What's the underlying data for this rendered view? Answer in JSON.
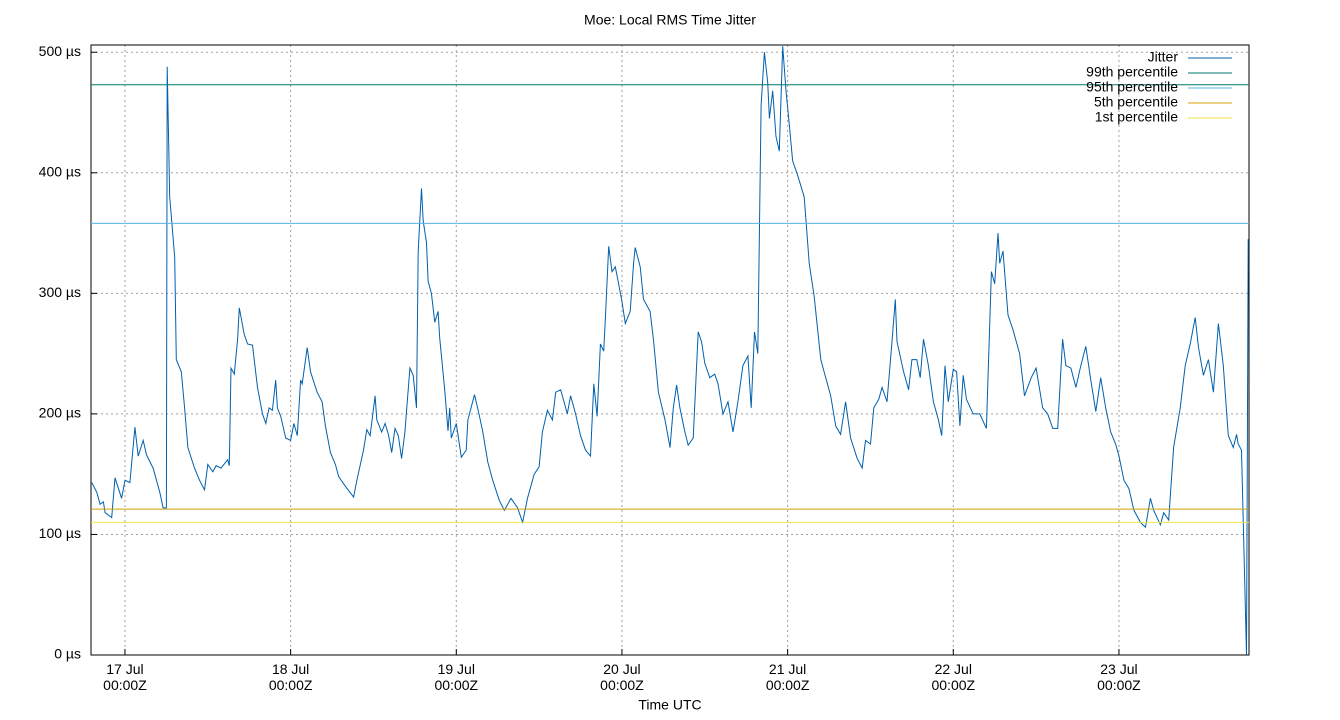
{
  "chart_data": {
    "type": "line",
    "title": "Moe: Local RMS Time Jitter",
    "x_label": "Time UTC",
    "xlim": [
      16.795,
      23.785
    ],
    "ylim": [
      0,
      506
    ],
    "grid": true,
    "legend": "top-right",
    "xticks": [
      {
        "value": 17,
        "label": "17 Jul\n00:00Z"
      },
      {
        "value": 18,
        "label": "18 Jul\n00:00Z"
      },
      {
        "value": 19,
        "label": "19 Jul\n00:00Z"
      },
      {
        "value": 20,
        "label": "20 Jul\n00:00Z"
      },
      {
        "value": 21,
        "label": "21 Jul\n00:00Z"
      },
      {
        "value": 22,
        "label": "22 Jul\n00:00Z"
      },
      {
        "value": 23,
        "label": "23 Jul\n00:00Z"
      }
    ],
    "yticks": [
      {
        "value": 0,
        "label": "0 µs"
      },
      {
        "value": 100,
        "label": "100 µs"
      },
      {
        "value": 200,
        "label": "200 µs"
      },
      {
        "value": 300,
        "label": "300 µs"
      },
      {
        "value": 400,
        "label": "400 µs"
      },
      {
        "value": 500,
        "label": "500 µs"
      }
    ],
    "series": [
      {
        "name": "Jitter",
        "color": "#0060ad",
        "x": [
          16.8,
          16.83,
          16.85,
          16.87,
          16.88,
          16.92,
          16.94,
          16.98,
          17.0,
          17.03,
          17.06,
          17.08,
          17.11,
          17.13,
          17.17,
          17.21,
          17.23,
          17.25,
          17.255,
          17.27,
          17.3,
          17.31,
          17.34,
          17.36,
          17.38,
          17.42,
          17.45,
          17.48,
          17.5,
          17.53,
          17.55,
          17.58,
          17.62,
          17.63,
          17.64,
          17.66,
          17.68,
          17.69,
          17.72,
          17.74,
          17.77,
          17.78,
          17.8,
          17.83,
          17.85,
          17.87,
          17.89,
          17.91,
          17.92,
          17.94,
          17.97,
          18.0,
          18.02,
          18.04,
          18.06,
          18.07,
          18.1,
          18.12,
          18.16,
          18.19,
          18.21,
          18.24,
          18.27,
          18.29,
          18.33,
          18.38,
          18.4,
          18.44,
          18.46,
          18.48,
          18.51,
          18.52,
          18.55,
          18.57,
          18.59,
          18.61,
          18.63,
          18.65,
          18.67,
          18.69,
          18.72,
          18.74,
          18.76,
          18.77,
          18.79,
          18.8,
          18.82,
          18.83,
          18.85,
          18.87,
          18.89,
          18.9,
          18.93,
          18.95,
          18.96,
          18.97,
          19.0,
          19.03,
          19.06,
          19.07,
          19.11,
          19.14,
          19.16,
          19.19,
          19.22,
          19.26,
          19.29,
          19.33,
          19.37,
          19.4,
          19.43,
          19.47,
          19.5,
          19.52,
          19.55,
          19.58,
          19.6,
          19.63,
          19.65,
          19.67,
          19.69,
          19.72,
          19.75,
          19.78,
          19.81,
          19.83,
          19.85,
          19.87,
          19.89,
          19.9,
          19.92,
          19.94,
          19.96,
          19.98,
          20.0,
          20.02,
          20.05,
          20.07,
          20.08,
          20.11,
          20.13,
          20.17,
          20.19,
          20.22,
          20.26,
          20.29,
          20.31,
          20.33,
          20.35,
          20.38,
          20.4,
          20.43,
          20.46,
          20.48,
          20.5,
          20.53,
          20.56,
          20.58,
          20.61,
          20.64,
          20.67,
          20.7,
          20.73,
          20.76,
          20.78,
          20.8,
          20.82,
          20.84,
          20.86,
          20.88,
          20.89,
          20.91,
          20.93,
          20.95,
          20.97,
          20.99,
          21.01,
          21.03,
          21.06,
          21.1,
          21.13,
          21.16,
          21.2,
          21.22,
          21.26,
          21.29,
          21.32,
          21.35,
          21.38,
          21.42,
          21.45,
          21.47,
          21.5,
          21.52,
          21.55,
          21.57,
          21.6,
          21.63,
          21.65,
          21.66,
          21.7,
          21.73,
          21.75,
          21.78,
          21.8,
          21.82,
          21.85,
          21.88,
          21.91,
          21.93,
          21.95,
          21.97,
          22.0,
          22.02,
          22.04,
          22.06,
          22.08,
          22.12,
          22.16,
          22.2,
          22.23,
          22.25,
          22.27,
          22.28,
          22.3,
          22.33,
          22.36,
          22.4,
          22.43,
          22.47,
          22.5,
          22.54,
          22.57,
          22.6,
          22.63,
          22.66,
          22.68,
          22.71,
          22.74,
          22.77,
          22.8,
          22.83,
          22.86,
          22.89,
          22.92,
          22.95,
          22.98,
          23.0,
          23.03,
          23.06,
          23.09,
          23.13,
          23.16,
          23.19,
          23.21,
          23.25,
          23.27,
          23.3,
          23.33,
          23.37,
          23.4,
          23.43,
          23.46,
          23.48,
          23.51,
          23.54,
          23.57,
          23.6,
          23.63,
          23.66,
          23.69,
          23.71,
          23.72,
          23.74,
          23.77,
          23.78
        ],
        "values": [
          143,
          135,
          125,
          127,
          118,
          114,
          147,
          130,
          145,
          143,
          189,
          165,
          178,
          166,
          155,
          135,
          122,
          122,
          488,
          380,
          330,
          245,
          235,
          205,
          172,
          155,
          145,
          137,
          158,
          152,
          157,
          155,
          162,
          157,
          238,
          233,
          262,
          288,
          266,
          258,
          257,
          245,
          222,
          200,
          192,
          205,
          203,
          228,
          205,
          198,
          180,
          178,
          192,
          182,
          228,
          225,
          255,
          235,
          218,
          210,
          190,
          168,
          158,
          148,
          140,
          131,
          145,
          170,
          187,
          182,
          215,
          195,
          185,
          192,
          183,
          168,
          188,
          182,
          163,
          185,
          238,
          232,
          205,
          335,
          387,
          360,
          342,
          310,
          300,
          276,
          285,
          263,
          220,
          186,
          205,
          180,
          192,
          164,
          170,
          195,
          216,
          198,
          185,
          160,
          145,
          128,
          120,
          130,
          122,
          110,
          130,
          150,
          156,
          185,
          203,
          195,
          218,
          220,
          210,
          200,
          215,
          200,
          182,
          170,
          165,
          225,
          198,
          258,
          252,
          280,
          339,
          318,
          322,
          308,
          293,
          275,
          285,
          325,
          338,
          322,
          295,
          285,
          262,
          218,
          195,
          172,
          205,
          224,
          205,
          185,
          174,
          180,
          268,
          260,
          242,
          230,
          233,
          225,
          200,
          210,
          185,
          210,
          240,
          248,
          205,
          268,
          250,
          456,
          500,
          475,
          445,
          468,
          430,
          418,
          505,
          468,
          440,
          410,
          398,
          380,
          325,
          298,
          245,
          235,
          215,
          190,
          183,
          210,
          180,
          163,
          155,
          178,
          175,
          205,
          212,
          222,
          210,
          260,
          295,
          260,
          235,
          220,
          245,
          245,
          230,
          262,
          240,
          210,
          195,
          182,
          240,
          210,
          237,
          235,
          190,
          232,
          212,
          200,
          200,
          188,
          318,
          308,
          350,
          325,
          335,
          282,
          270,
          250,
          215,
          230,
          238,
          205,
          200,
          188,
          188,
          262,
          240,
          238,
          222,
          240,
          256,
          228,
          202,
          230,
          205,
          185,
          175,
          165,
          145,
          138,
          120,
          110,
          106,
          130,
          120,
          108,
          118,
          112,
          172,
          205,
          240,
          258,
          280,
          255,
          232,
          245,
          218,
          275,
          240,
          182,
          172,
          183,
          175,
          170,
          0,
          345
        ]
      },
      {
        "name": "99th percentile",
        "color": "#00796b",
        "value": 473
      },
      {
        "name": "95th percentile",
        "color": "#56b4e9",
        "value": 358
      },
      {
        "name": "5th percentile",
        "color": "#d4a000",
        "value": 121
      },
      {
        "name": "1st percentile",
        "color": "#f0e442",
        "value": 110
      }
    ]
  }
}
